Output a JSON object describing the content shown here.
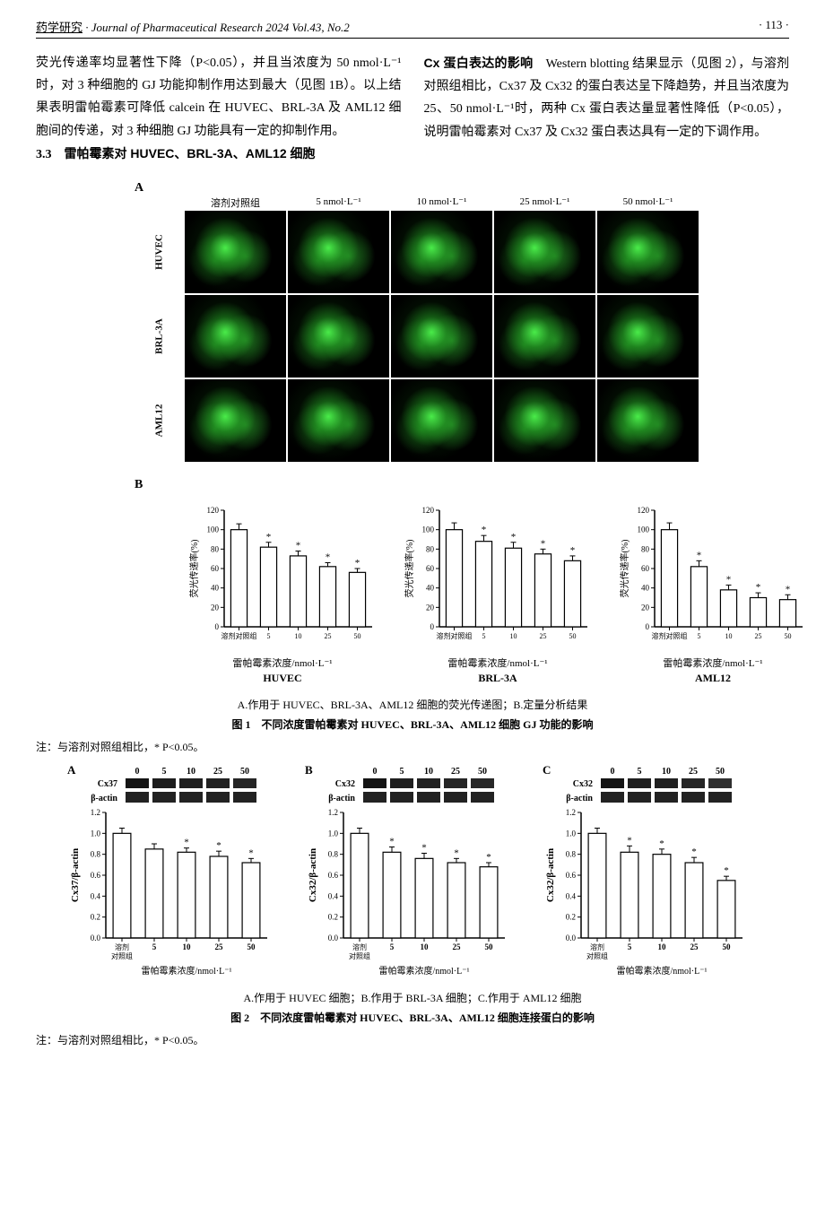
{
  "header": {
    "journal_cn": "药学研究",
    "journal_en": "Journal of Pharmaceutical Research 2024 Vol.43, No.2",
    "page": "· 113 ·"
  },
  "body": {
    "left_para": "荧光传递率均显著性下降（P<0.05），并且当浓度为 50 nmol·L⁻¹时，对 3 种细胞的 GJ 功能抑制作用达到最大（见图 1B）。以上结果表明雷帕霉素可降低 calcein 在 HUVEC、BRL-3A 及 AML12 细胞间的传递，对 3 种细胞 GJ 功能具有一定的抑制作用。",
    "section_num": "3.3",
    "section_title": "雷帕霉素对 HUVEC、BRL-3A、AML12 细胞",
    "right_title": "Cx 蛋白表达的影响",
    "right_para": "　Western blotting 结果显示（见图 2），与溶剂对照组相比，Cx37 及 Cx32 的蛋白表达呈下降趋势，并且当浓度为 25、50 nmol·L⁻¹时，两种 Cx 蛋白表达量显著性降低（P<0.05），说明雷帕霉素对 Cx37 及 Cx32 蛋白表达具有一定的下调作用。"
  },
  "fig1": {
    "panelA": {
      "label": "A",
      "col_headers": [
        "溶剂对照组",
        "5 nmol·L⁻¹",
        "10 nmol·L⁻¹",
        "25 nmol·L⁻¹",
        "50 nmol·L⁻¹"
      ],
      "row_labels": [
        "HUVEC",
        "BRL-3A",
        "AML12"
      ]
    },
    "panelB": {
      "label": "B",
      "ylabel": "荧光传递率(%)",
      "xlabel": "雷帕霉素浓度/nmol·L⁻¹",
      "ylim": [
        0,
        120
      ],
      "ytick_step": 20,
      "categories": [
        "溶剂对照组",
        "5",
        "10",
        "25",
        "50"
      ],
      "charts": [
        {
          "title": "HUVEC",
          "values": [
            100,
            82,
            73,
            62,
            56
          ],
          "errors": [
            6,
            5,
            5,
            4,
            4
          ],
          "sig": [
            false,
            true,
            true,
            true,
            true
          ]
        },
        {
          "title": "BRL-3A",
          "values": [
            100,
            88,
            81,
            75,
            68
          ],
          "errors": [
            7,
            6,
            6,
            5,
            5
          ],
          "sig": [
            false,
            true,
            true,
            true,
            true
          ]
        },
        {
          "title": "AML12",
          "values": [
            100,
            62,
            38,
            30,
            28
          ],
          "errors": [
            7,
            6,
            5,
            5,
            5
          ],
          "sig": [
            false,
            true,
            true,
            true,
            true
          ]
        }
      ],
      "bar_color": "#ffffff",
      "bar_border": "#000000",
      "bar_width": 0.55
    },
    "caption_line1": "A.作用于 HUVEC、BRL-3A、AML12 细胞的荧光传递图；B.定量分析结果",
    "caption_title": "图 1　不同浓度雷帕霉素对 HUVEC、BRL-3A、AML12 细胞 GJ 功能的影响",
    "note": "注：与溶剂对照组相比，* P<0.05。"
  },
  "fig2": {
    "panels": [
      {
        "label": "A",
        "protein": "Cx37",
        "ylabel": "Cx37/β-actin",
        "title": "",
        "values": [
          1.0,
          0.85,
          0.82,
          0.78,
          0.72
        ],
        "errors": [
          0.05,
          0.05,
          0.04,
          0.05,
          0.04
        ],
        "sig": [
          false,
          false,
          true,
          true,
          true
        ]
      },
      {
        "label": "B",
        "protein": "Cx32",
        "ylabel": "Cx32/β-actin",
        "title": "",
        "values": [
          1.0,
          0.82,
          0.76,
          0.72,
          0.68
        ],
        "errors": [
          0.05,
          0.05,
          0.05,
          0.04,
          0.04
        ],
        "sig": [
          false,
          true,
          true,
          true,
          true
        ]
      },
      {
        "label": "C",
        "protein": "Cx32",
        "ylabel": "Cx32/β-actin",
        "title": "",
        "values": [
          1.0,
          0.82,
          0.8,
          0.72,
          0.55
        ],
        "errors": [
          0.05,
          0.06,
          0.05,
          0.05,
          0.04
        ],
        "sig": [
          false,
          true,
          true,
          true,
          true
        ]
      }
    ],
    "lane_labels": [
      "0",
      "5",
      "10",
      "25",
      "50"
    ],
    "beta_actin": "β-actin",
    "ylim": [
      0,
      1.2
    ],
    "ytick_step": 0.2,
    "xlabel": "雷帕霉素浓度/nmol·L⁻¹",
    "x_first": "溶剂\n对照组",
    "categories": [
      "5",
      "10",
      "25",
      "50"
    ],
    "caption_line1": "A.作用于 HUVEC 细胞；B.作用于 BRL-3A 细胞；C.作用于 AML12 细胞",
    "caption_title": "图 2　不同浓度雷帕霉素对 HUVEC、BRL-3A、AML12 细胞连接蛋白的影响",
    "note": "注：与溶剂对照组相比，* P<0.05。"
  }
}
